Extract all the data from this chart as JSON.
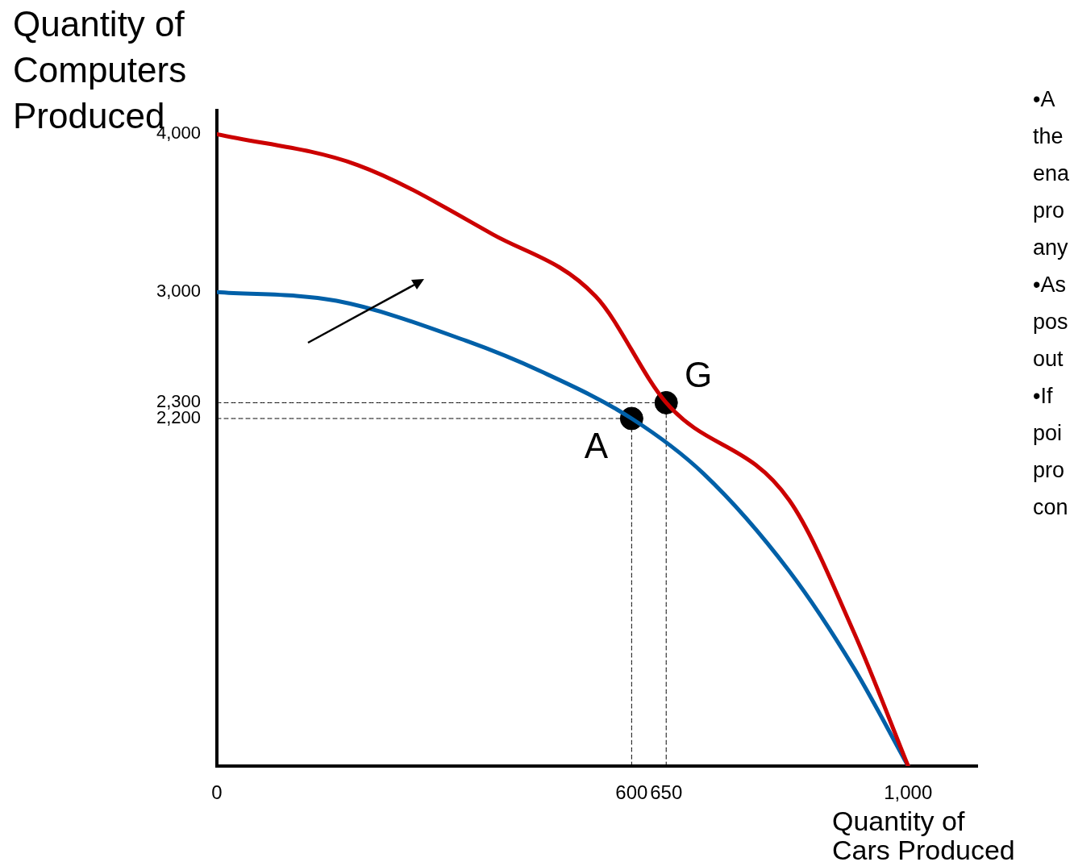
{
  "chart_data": {
    "type": "line",
    "xlabel": "Quantity of\nCars Produced",
    "ylabel": "Quantity of\nComputers\nProduced",
    "xlim": [
      0,
      1100
    ],
    "ylim": [
      0,
      4150
    ],
    "xticks": [
      0,
      600,
      650,
      {
        "value": 1000,
        "label": "1,000"
      }
    ],
    "yticks": [
      {
        "value": 2200,
        "label": "2,200"
      },
      {
        "value": 2300,
        "label": "2,300"
      },
      {
        "value": 3000,
        "label": "3,000"
      },
      {
        "value": 4000,
        "label": "4,000"
      }
    ],
    "series": [
      {
        "type": "line",
        "color": "#cc0000",
        "marker": "none",
        "line_style": "solid",
        "x": [
          0,
          204,
          399,
          548,
          650,
          828,
          922,
          1000
        ],
        "values": [
          4000,
          3804,
          3366,
          2973,
          2300,
          1683,
          842,
          0
        ]
      },
      {
        "type": "line",
        "color": "#0060a8",
        "marker": "none",
        "line_style": "solid",
        "x": [
          0,
          173,
          360,
          470,
          600,
          704,
          828,
          922,
          1000
        ],
        "values": [
          3000,
          2945,
          2693,
          2496,
          2200,
          1851,
          1234,
          617,
          0
        ]
      },
      {
        "type": "line",
        "color": "#000000",
        "marker": "none",
        "line_style": "dashed",
        "x": [
          0,
          650
        ],
        "values": [
          2300,
          2300
        ]
      },
      {
        "type": "line",
        "color": "#000000",
        "marker": "none",
        "line_style": "dashed",
        "x": [
          650,
          650
        ],
        "values": [
          0,
          2300
        ]
      },
      {
        "type": "line",
        "color": "#000000",
        "marker": "none",
        "line_style": "dashed",
        "x": [
          0,
          600
        ],
        "values": [
          2200,
          2200
        ]
      },
      {
        "type": "line",
        "color": "#000000",
        "marker": "none",
        "line_style": "dashed",
        "x": [
          600,
          600
        ],
        "values": [
          0,
          2200
        ]
      },
      {
        "type": "scatter",
        "color": "#000000",
        "marker": "circle",
        "x": [
          600,
          650
        ],
        "values": [
          2200,
          2300
        ]
      }
    ],
    "annotations": [
      {
        "text": "A",
        "x": 600,
        "y": 2200
      },
      {
        "text": "G",
        "x": 650,
        "y": 2300
      },
      "•A",
      "the",
      "ena",
      "pro",
      "any",
      "•As",
      "pos",
      "out",
      "•If",
      "poi",
      "pro",
      "con"
    ]
  }
}
